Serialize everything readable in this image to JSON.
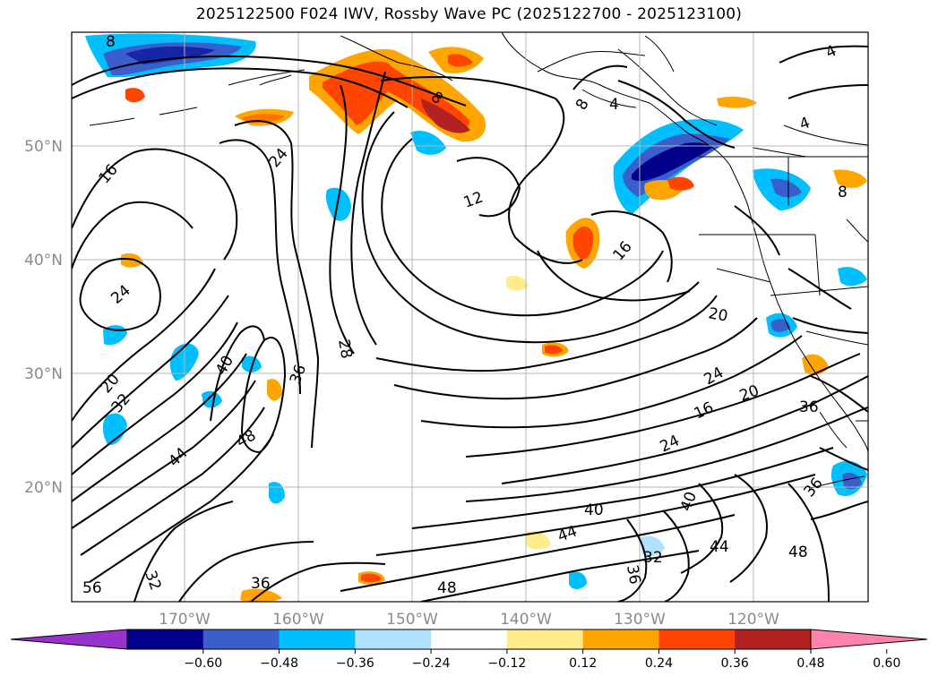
{
  "title": "2025122500 F024 IWV, Rossby Wave PC (2025122700 - 2025123100)",
  "map": {
    "lon_ticks": [
      "170°W",
      "160°W",
      "150°W",
      "140°W",
      "130°W",
      "120°W"
    ],
    "lat_ticks": [
      "50°N",
      "40°N",
      "30°N",
      "20°N"
    ],
    "contour_labels": [
      "8",
      "12",
      "16",
      "24",
      "28",
      "36",
      "40",
      "48",
      "20",
      "32",
      "44",
      "56",
      "4",
      "8",
      "16",
      "20",
      "24",
      "36",
      "40",
      "44",
      "48",
      "32",
      "36",
      "44",
      "48",
      "40",
      "36",
      "24",
      "16",
      "20",
      "24",
      "36",
      "32",
      "8",
      "8",
      "4",
      "4"
    ]
  },
  "colorbar": {
    "ticks": [
      "-0.60",
      "-0.48",
      "-0.36",
      "-0.24",
      "-0.12",
      "0.12",
      "0.24",
      "0.36",
      "0.48",
      "0.60"
    ],
    "colors": [
      "#9932cc",
      "#00008b",
      "#3a5fcd",
      "#00bfff",
      "#b0e2ff",
      "#ffffff",
      "#ffec8b",
      "#ffa500",
      "#ff4500",
      "#b22222",
      "#ff82ab"
    ]
  }
}
